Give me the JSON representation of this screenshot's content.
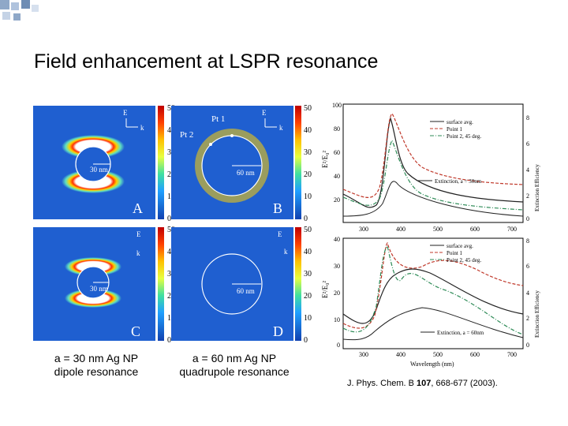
{
  "title": "Field enhancement at LSPR resonance",
  "panels": {
    "A": {
      "letter": "A",
      "scale": "30 nm",
      "field_labels": [
        "E",
        "k"
      ]
    },
    "B": {
      "letter": "B",
      "scale": "60 nm",
      "pt1": "Pt 1",
      "pt2": "Pt 2",
      "field_labels": [
        "E",
        "k"
      ]
    },
    "C": {
      "letter": "C",
      "scale": "30 nm",
      "field_labels": [
        "E",
        "k"
      ]
    },
    "D": {
      "letter": "D",
      "scale": "60 nm",
      "field_labels": [
        "E",
        "k"
      ]
    }
  },
  "colorbar_ticks": [
    "50",
    "40",
    "30",
    "20",
    "10",
    "0"
  ],
  "captions": {
    "left": {
      "line1": "a = 30 nm Ag NP",
      "line2": "dipole resonance"
    },
    "right": {
      "line1": "a = 60 nm Ag NP",
      "line2": "quadrupole resonance"
    }
  },
  "spectra": {
    "top": {
      "yticks": [
        "100",
        "80",
        "60",
        "40",
        "20"
      ],
      "right_ticks": [
        "8",
        "6",
        "4",
        "2",
        "0"
      ],
      "xticks": [
        "300",
        "400",
        "500",
        "600",
        "700"
      ],
      "legend": [
        "surface avg.",
        "Point 1",
        "Point 2, 45 deg."
      ],
      "extinction": "Extinction, a = 30nm",
      "ylabel": "E²/E₀²",
      "right_label": "Extinction Efficiency"
    },
    "bottom": {
      "yticks": [
        "40",
        "30",
        "20",
        "10",
        "0"
      ],
      "right_ticks": [
        "8",
        "6",
        "4",
        "2",
        "0"
      ],
      "xticks": [
        "300",
        "400",
        "500",
        "600",
        "700"
      ],
      "legend": [
        "surface avg.",
        "Point 1",
        "Point 2, 45 deg."
      ],
      "extinction": "Extinction, a = 60nm",
      "ylabel": "E²/E₀²",
      "right_label": "Extinction Efficiency",
      "xlabel": "Wavelength (nm)"
    }
  },
  "citation": {
    "pre": "J. Phys. Chem. B ",
    "vol": "107",
    "post": ", 668-677 (2003)."
  },
  "colors": {
    "field_background": "#1f5fd0",
    "spectra_solid": "#222222",
    "spectra_red": "#c0392b",
    "spectra_green": "#2e8b57",
    "deco_square": "#8fa8c8"
  }
}
